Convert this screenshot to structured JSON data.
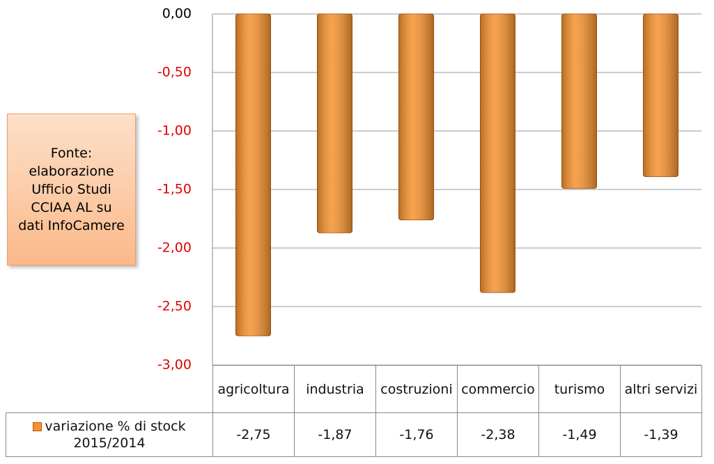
{
  "chart_data": {
    "type": "bar",
    "annotation": "Fonte: elaborazione Ufficio Studi CCIAA AL su dati InfoCamere",
    "categories": [
      "agricoltura",
      "industria",
      "costruzioni",
      "commercio",
      "turismo",
      "altri servizi"
    ],
    "series": [
      {
        "name": "variazione % di stock 2015/2014",
        "color": "#f5922f",
        "values": [
          -2.75,
          -1.87,
          -1.76,
          -2.38,
          -1.49,
          -1.39
        ],
        "value_labels": [
          "-2,75",
          "-1,87",
          "-1,76",
          "-2,38",
          "-1,49",
          "-1,39"
        ]
      }
    ],
    "ylim": [
      -3,
      0
    ],
    "yticks": [
      {
        "value": 0,
        "label": "0,00"
      },
      {
        "value": -0.5,
        "label": "-0,50"
      },
      {
        "value": -1,
        "label": "-1,00"
      },
      {
        "value": -1.5,
        "label": "-1,50"
      },
      {
        "value": -2,
        "label": "-2,00"
      },
      {
        "value": -2.5,
        "label": "-2,50"
      },
      {
        "value": -3,
        "label": "-3,00"
      }
    ],
    "ytick_label_colors": [
      "#000000",
      "#e00000",
      "#e00000",
      "#e00000",
      "#e00000",
      "#e00000",
      "#e00000"
    ],
    "grid": true
  }
}
